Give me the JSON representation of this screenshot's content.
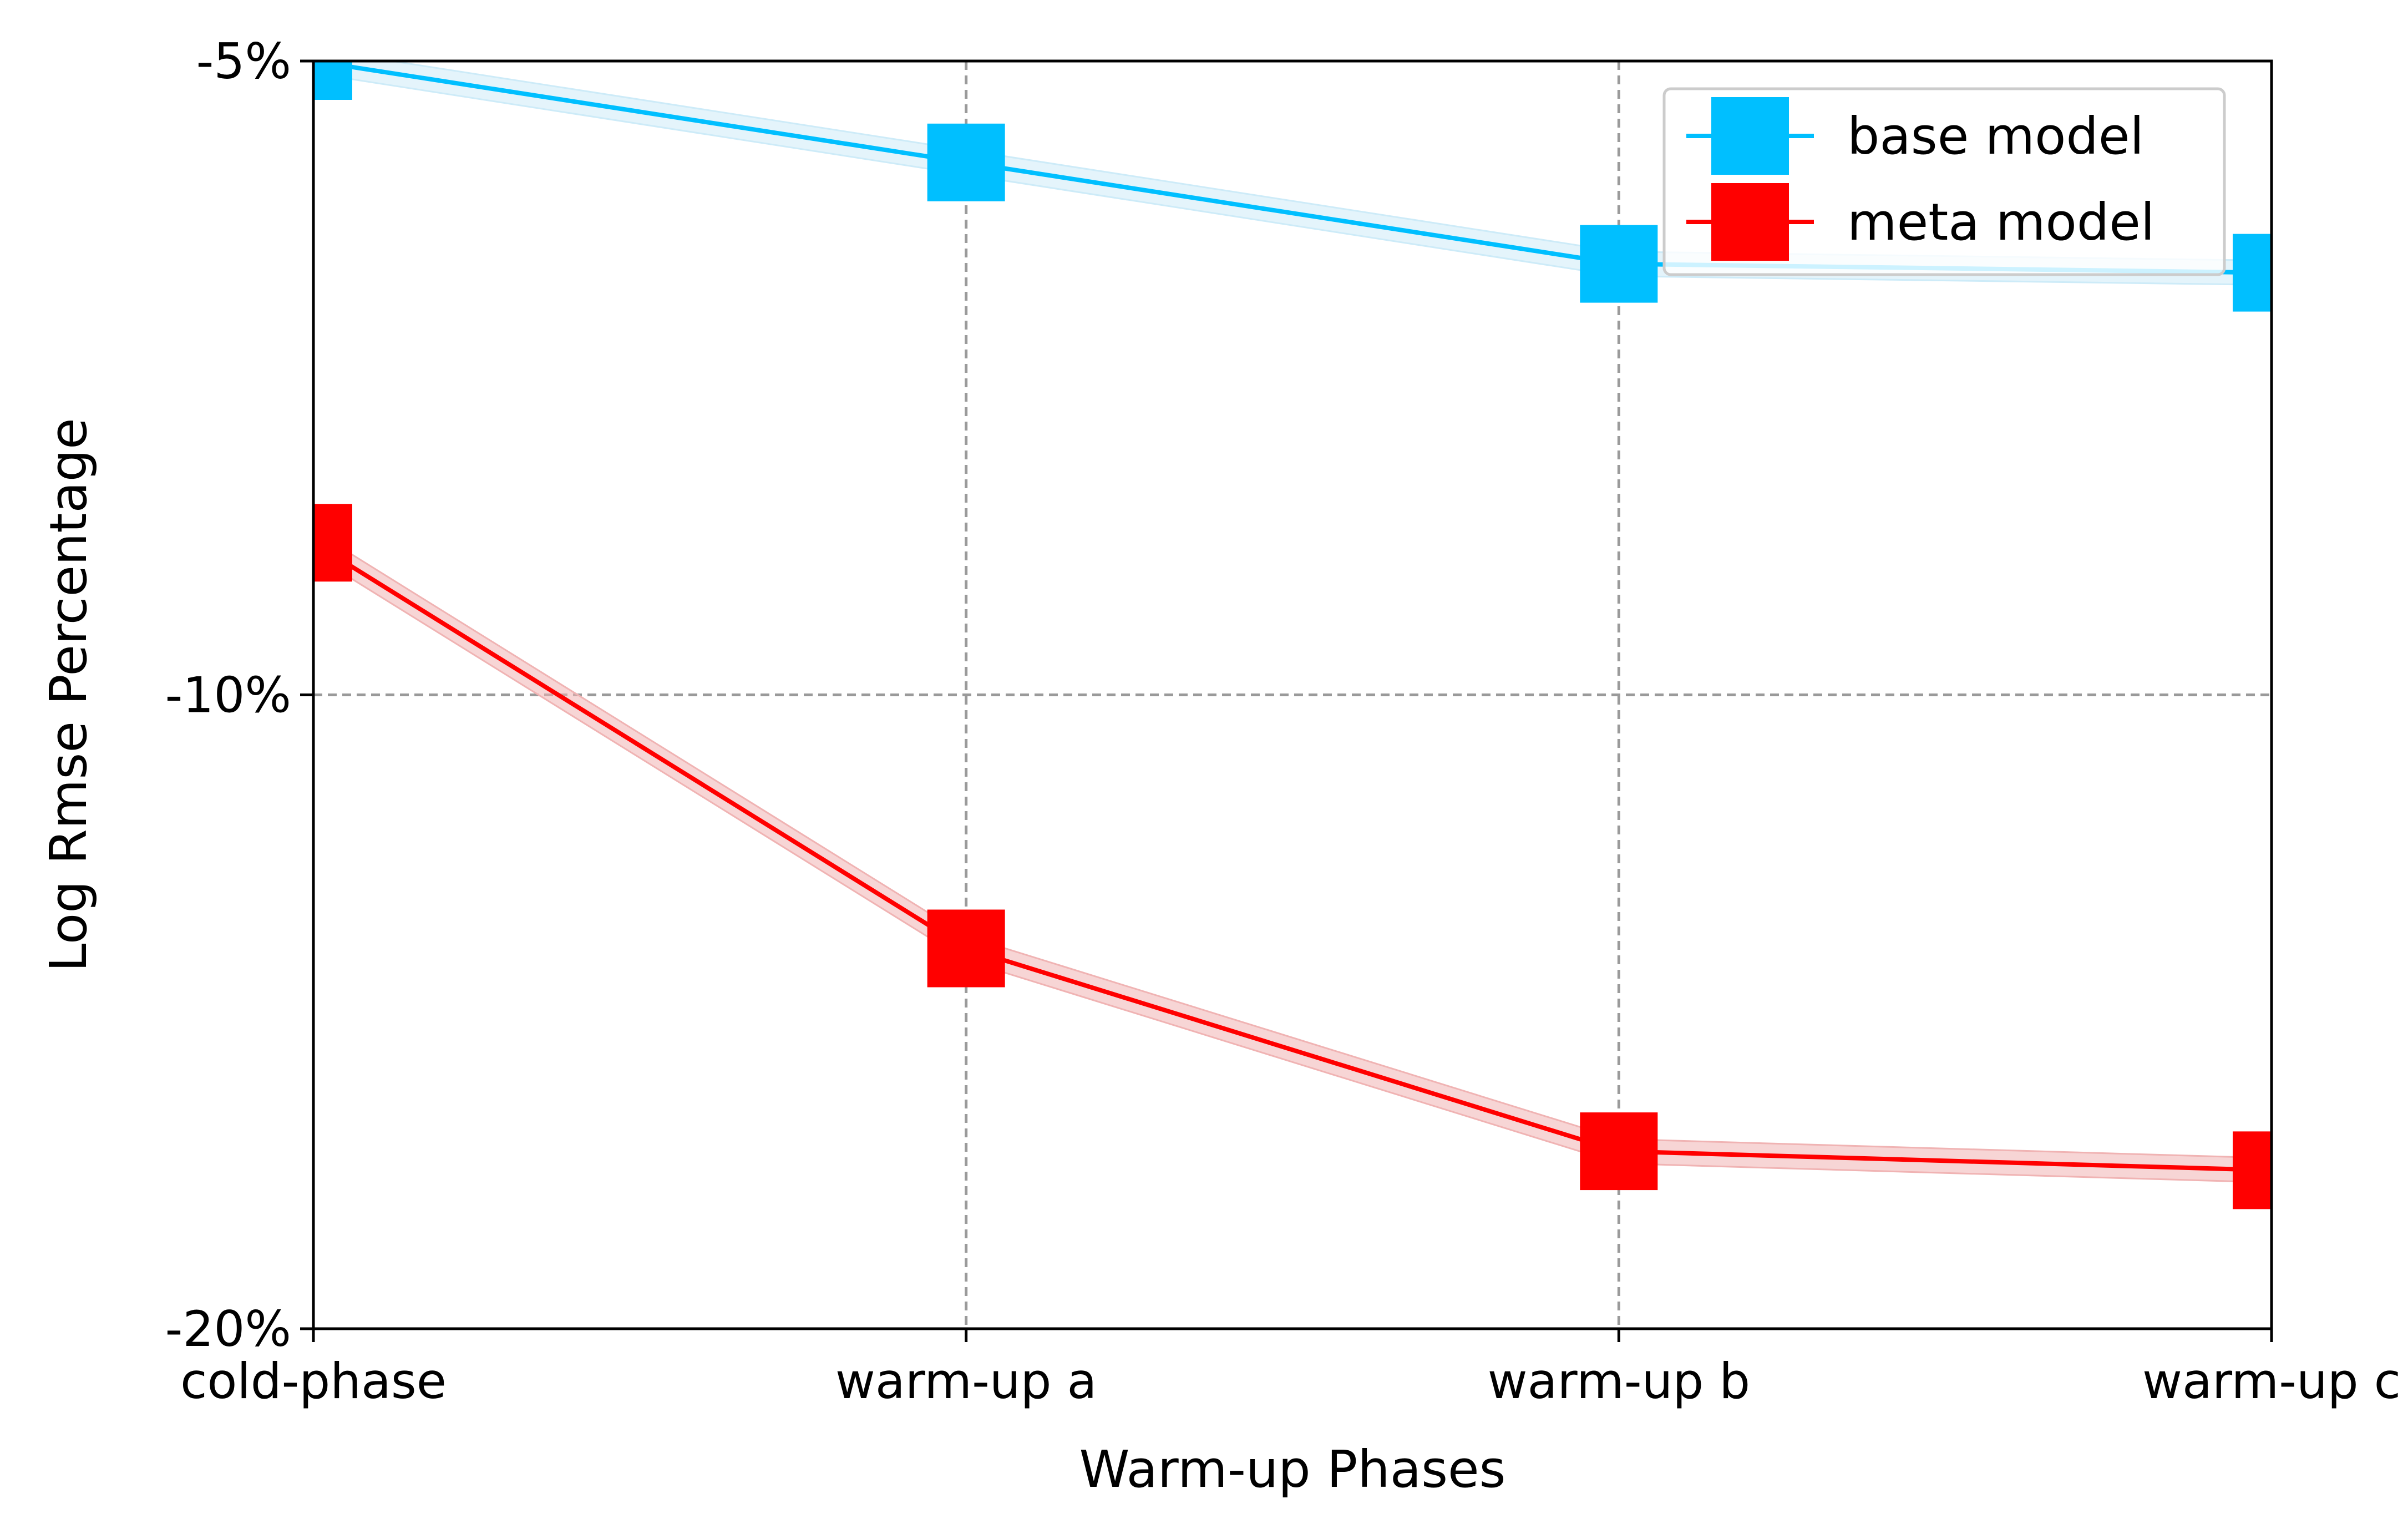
{
  "chart_data": {
    "type": "line",
    "title": "",
    "xlabel": "Warm-up Phases",
    "ylabel": "Log Rmse Percentage",
    "categories": [
      "cold-phase",
      "warm-up a",
      "warm-up b",
      "warm-up c"
    ],
    "y_ticks": [
      {
        "label": "-5%",
        "level": 0
      },
      {
        "label": "-10%",
        "level": 1
      },
      {
        "label": "-20%",
        "level": 2
      }
    ],
    "y_scale": "nonlinear (ticks -5%, -10%, -20% equally spaced)",
    "series": [
      {
        "name": "base model",
        "color": "#00BFFF",
        "band_color": "#cdebf8",
        "values": [
          -5.0,
          -5.8,
          -6.6,
          -6.67
        ],
        "marker": "square"
      },
      {
        "name": "meta model",
        "color": "#FF0000",
        "band_color": "#f0b3b3",
        "values": [
          -8.8,
          -14.0,
          -17.2,
          -17.5
        ],
        "marker": "square"
      }
    ],
    "grid": true,
    "grid_style": "dashed gray",
    "legend_position": "top-right"
  }
}
